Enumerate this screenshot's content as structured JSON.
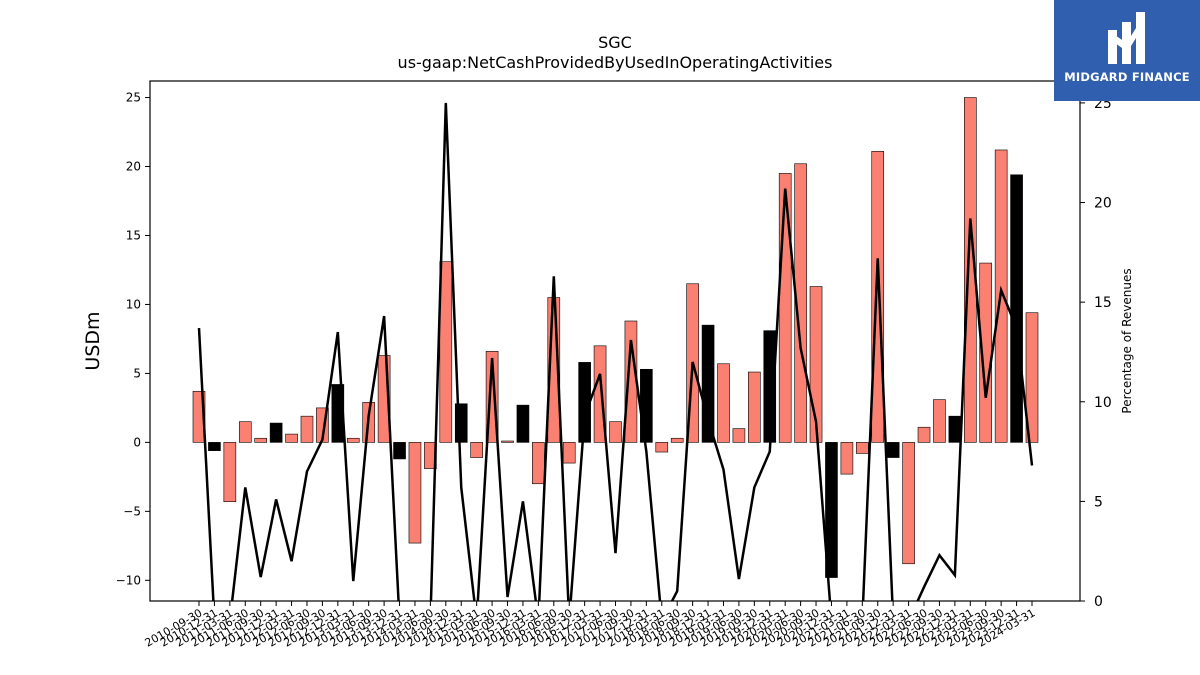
{
  "chart_data": {
    "type": "bar",
    "title": "SGC",
    "subtitle": "us-gaap:NetCashProvidedByUsedInOperatingActivities",
    "ylabel": "USDm",
    "y2label": "Percentage of Revenues",
    "ylim": [
      -11.5,
      26.2
    ],
    "y2lim": [
      0,
      26.1
    ],
    "yticks": [
      -10,
      -5,
      0,
      5,
      10,
      15,
      20,
      25
    ],
    "y2ticks": [
      0,
      5,
      10,
      15,
      20,
      25
    ],
    "grid": false,
    "colors": {
      "bar_default": "#fa8072",
      "bar_highlight": "#000000",
      "line": "#000000"
    },
    "categories": [
      "2010-09-30",
      "2010-12-31",
      "2011-03-31",
      "2011-06-30",
      "2011-09-30",
      "2011-12-31",
      "2012-03-31",
      "2012-06-30",
      "2012-09-30",
      "2012-12-31",
      "2013-03-31",
      "2013-06-30",
      "2013-09-30",
      "2013-12-31",
      "2014-03-31",
      "2014-06-30",
      "2014-09-30",
      "2014-12-31",
      "2015-03-31",
      "2015-06-30",
      "2015-09-30",
      "2015-12-31",
      "2016-03-31",
      "2016-06-30",
      "2016-09-30",
      "2016-12-31",
      "2017-03-31",
      "2017-06-30",
      "2017-09-30",
      "2017-12-31",
      "2018-03-31",
      "2018-06-30",
      "2018-09-30",
      "2018-12-31",
      "2019-03-31",
      "2019-06-30",
      "2019-09-30",
      "2019-12-31",
      "2020-03-31",
      "2020-06-30",
      "2020-09-30",
      "2020-12-31",
      "2021-03-31",
      "2021-06-30",
      "2021-09-30",
      "2021-12-31",
      "2022-03-31",
      "2022-06-30",
      "2022-09-30",
      "2022-12-31",
      "2023-03-31",
      "2023-06-30",
      "2023-09-30",
      "2023-12-31",
      "2024-03-31"
    ],
    "xtick_labels": [
      "2010-09-30",
      "2010-12-31",
      "2011-03-31",
      "2011-06-30",
      "2011-09-30",
      "2011-12-31",
      "2012-03-31",
      "2012-06-30",
      "2012-09-30",
      "2012-12-31",
      "2013-03-31",
      "2013-06-30",
      "2013-09-30",
      "2013-12-31",
      "2014-03-31",
      "2014-06-30",
      "2014-09-30",
      "2014-12-31",
      "2015-03-31",
      "2015-06-30",
      "2015-09-30",
      "2015-12-31",
      "2016-03-31",
      "2016-06-30",
      "2016-09-30",
      "2016-12-31",
      "2017-03-31",
      "2017-06-30",
      "2017-09-30",
      "2017-12-31",
      "2018-03-31",
      "2018-06-30",
      "2018-09-30",
      "2018-12-31",
      "2019-03-31",
      "2019-06-30",
      "2019-09-30",
      "2019-12-31",
      "2020-03-31",
      "2020-06-30",
      "2020-09-30",
      "2020-12-31",
      "2021-03-31",
      "2021-06-30",
      "2021-09-30",
      "2021-12-31",
      "2022-03-31",
      "2022-06-30",
      "2022-09-30",
      "2022-12-31",
      "2023-03-31",
      "2023-06-30",
      "2023-09-30",
      "2023-12-31",
      "2024-03-31"
    ],
    "series": [
      {
        "type": "bar",
        "values": [
          3.7,
          -0.6,
          -4.3,
          1.5,
          0.3,
          1.4,
          0.6,
          1.9,
          2.5,
          4.2,
          0.3,
          2.9,
          6.3,
          -1.2,
          -7.3,
          -1.9,
          13.1,
          2.8,
          -1.1,
          6.6,
          0.1,
          2.7,
          -3.0,
          10.5,
          -1.5,
          5.8,
          7.0,
          1.5,
          8.8,
          5.3,
          -0.7,
          0.3,
          11.5,
          8.5,
          5.7,
          1.0,
          5.1,
          8.1,
          19.5,
          20.2,
          11.3,
          -9.8,
          -2.3,
          -0.8,
          21.1,
          -1.1,
          -8.8,
          1.1,
          3.1,
          1.9,
          25.0,
          13.0,
          21.2,
          19.4,
          9.4
        ],
        "highlight": [
          false,
          true,
          false,
          false,
          false,
          true,
          false,
          false,
          false,
          true,
          false,
          false,
          false,
          true,
          false,
          false,
          false,
          true,
          false,
          false,
          false,
          true,
          false,
          false,
          false,
          true,
          false,
          false,
          false,
          true,
          false,
          false,
          false,
          true,
          false,
          false,
          false,
          true,
          false,
          false,
          false,
          true,
          false,
          false,
          false,
          true,
          false,
          false,
          false,
          true,
          false,
          false,
          false,
          true,
          false
        ]
      },
      {
        "type": "line",
        "axis": "right",
        "values": [
          13.7,
          -1.0,
          -1.0,
          5.7,
          1.2,
          5.1,
          2.0,
          6.5,
          8.1,
          13.5,
          1.0,
          9.3,
          14.3,
          -1.0,
          -1.0,
          -1.0,
          25.0,
          5.7,
          -1.0,
          12.2,
          0.2,
          5.0,
          -1.0,
          16.3,
          -1.0,
          9.3,
          11.4,
          2.4,
          13.1,
          7.5,
          -1.0,
          0.5,
          12.0,
          9.1,
          6.6,
          1.1,
          5.7,
          7.5,
          20.7,
          12.7,
          9.0,
          -1.0,
          -1.0,
          -1.0,
          17.2,
          -1.0,
          -1.0,
          0.7,
          2.3,
          1.3,
          19.2,
          10.2,
          15.6,
          13.7,
          6.8
        ]
      }
    ]
  },
  "logo": {
    "text": "MIDGARD FINANCE"
  }
}
